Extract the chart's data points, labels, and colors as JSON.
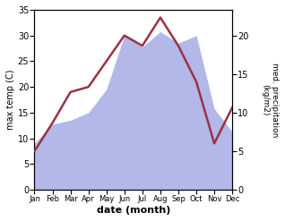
{
  "months": [
    "Jan",
    "Feb",
    "Mar",
    "Apr",
    "May",
    "Jun",
    "Jul",
    "Aug",
    "Sep",
    "Oct",
    "Nov",
    "Dec"
  ],
  "temperature": [
    7.5,
    13.0,
    19.0,
    20.0,
    25.0,
    30.0,
    28.0,
    33.5,
    28.0,
    21.0,
    9.0,
    16.0
  ],
  "precipitation": [
    6.0,
    8.5,
    9.0,
    10.0,
    13.0,
    20.0,
    18.5,
    20.5,
    19.0,
    20.0,
    10.5,
    7.5
  ],
  "temp_color": "#993344",
  "precip_fill_color": "#b3b8e8",
  "ylabel_left": "max temp (C)",
  "ylabel_right": "med. precipitation\n(kg/m2)",
  "xlabel": "date (month)",
  "ylim_left": [
    0,
    35
  ],
  "ylim_right": [
    0,
    23.33
  ],
  "yticks_left": [
    0,
    5,
    10,
    15,
    20,
    25,
    30,
    35
  ],
  "yticks_right": [
    0,
    5,
    10,
    15,
    20
  ],
  "background_color": "#ffffff"
}
